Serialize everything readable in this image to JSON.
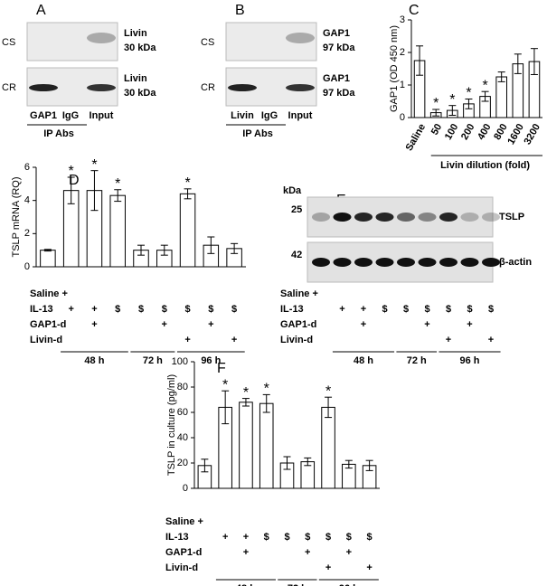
{
  "blots": [
    {
      "panel": "A",
      "rows": [
        {
          "name": "CS",
          "band": "Livin",
          "size": "30 kDa"
        },
        {
          "name": "CR",
          "band": "Livin",
          "size": "30 kDa"
        }
      ],
      "lanes": [
        "GAP1",
        "IgG",
        "Input"
      ],
      "group": "IP Abs"
    },
    {
      "panel": "B",
      "rows": [
        {
          "name": "CS",
          "band": "GAP1",
          "size": "97 kDa"
        },
        {
          "name": "CR",
          "band": "GAP1",
          "size": "97 kDa"
        }
      ],
      "lanes": [
        "Livin",
        "IgG",
        "Input"
      ],
      "group": "IP Abs"
    },
    {
      "panel": "E",
      "unit": "kDa",
      "rows": [
        {
          "mw": "25",
          "name": "TSLP"
        },
        {
          "mw": "42",
          "name": "β-actin"
        }
      ]
    }
  ],
  "treatments": {
    "rows": [
      {
        "label": "Saline +",
        "marks": [
          null,
          null,
          null,
          null,
          null,
          null,
          null,
          null,
          null
        ]
      },
      {
        "label": "IL-13",
        "marks": [
          null,
          "+",
          "+",
          "$",
          "$",
          "$",
          "$",
          "$",
          "$"
        ]
      },
      {
        "label": "GAP1-d",
        "marks": [
          null,
          null,
          "+",
          null,
          null,
          "+",
          null,
          "+",
          null
        ]
      },
      {
        "label": "Livin-d",
        "marks": [
          null,
          null,
          null,
          null,
          null,
          null,
          "+",
          null,
          "+"
        ]
      }
    ],
    "groups": [
      "48 h",
      "72 h",
      "96 h"
    ]
  },
  "chart_data": [
    {
      "type": "bar",
      "panel": "C",
      "y_label": "GAP1 (OD 450 nm)",
      "x_label": "Livin dilution (fold)",
      "categories": [
        "Saline",
        "50",
        "100",
        "200",
        "400",
        "800",
        "1600",
        "3200"
      ],
      "values": [
        1.75,
        0.15,
        0.22,
        0.42,
        0.65,
        1.25,
        1.65,
        1.72
      ],
      "errors": [
        0.45,
        0.1,
        0.15,
        0.15,
        0.15,
        0.15,
        0.3,
        0.4
      ],
      "stars": [
        null,
        "*",
        "*",
        "*",
        "*",
        null,
        null,
        null
      ],
      "color": "#ffffff",
      "ylim": [
        0,
        3
      ],
      "yticks": [
        0,
        1,
        2,
        3
      ]
    },
    {
      "type": "bar",
      "panel": "D",
      "y_label": "TSLP mRNA (RQ)",
      "values": [
        1.0,
        4.6,
        4.6,
        4.3,
        1.0,
        1.0,
        4.4,
        1.3,
        1.1
      ],
      "errors": [
        0.05,
        0.8,
        1.2,
        0.35,
        0.3,
        0.3,
        0.3,
        0.5,
        0.3
      ],
      "stars": [
        null,
        "*",
        "*",
        "*",
        null,
        null,
        "*",
        null,
        null
      ],
      "color": "#ffffff",
      "ylim": [
        0,
        6
      ],
      "yticks": [
        0,
        2,
        4,
        6
      ]
    },
    {
      "type": "bar",
      "panel": "F",
      "y_label": "TSLP in culture (pg/ml)",
      "values": [
        18,
        64,
        68,
        67,
        20,
        21,
        64,
        19,
        18
      ],
      "errors": [
        5,
        13,
        3,
        7,
        5,
        3,
        8,
        3,
        4
      ],
      "stars": [
        null,
        "*",
        "*",
        "*",
        null,
        null,
        "*",
        null,
        null
      ],
      "color": "#ffffff",
      "ylim": [
        0,
        100
      ],
      "yticks": [
        0,
        20,
        40,
        60,
        80,
        100
      ]
    }
  ]
}
